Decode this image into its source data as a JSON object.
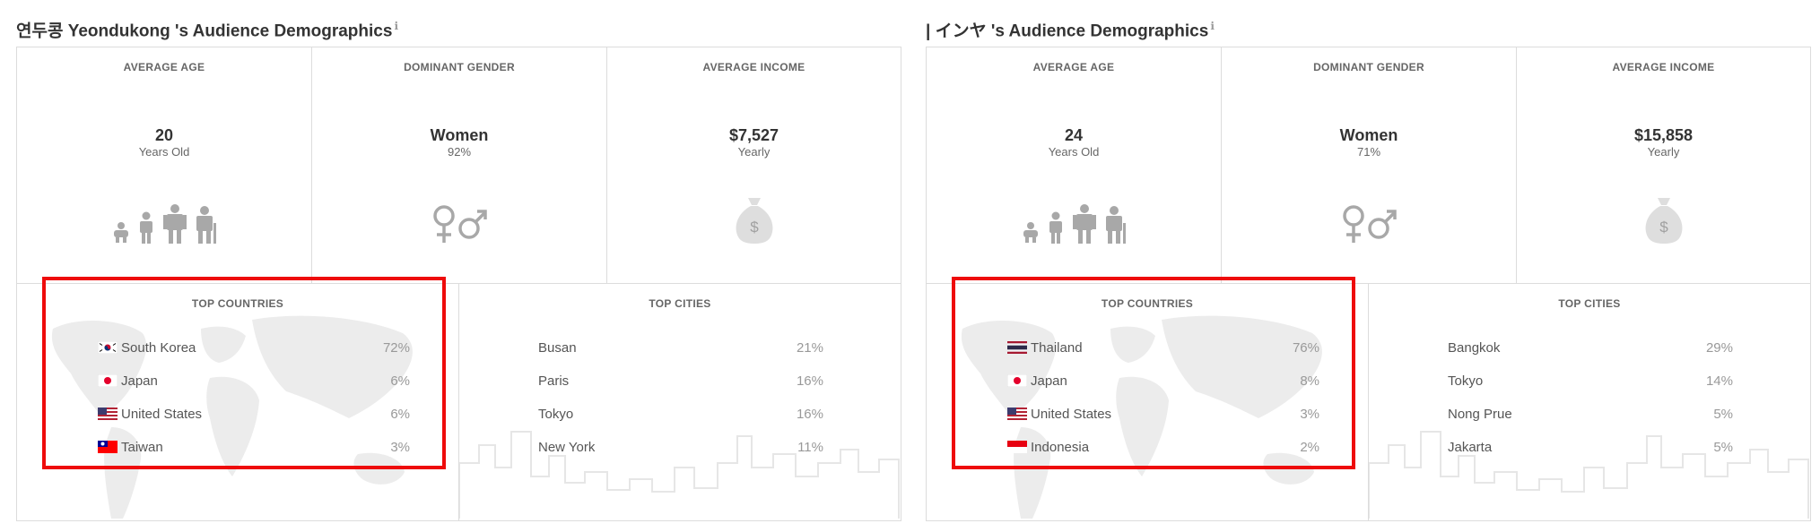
{
  "panels": [
    {
      "title": "연두콩 Yeondukong 's Audience Demographics",
      "info_icon": "ℹ",
      "age": {
        "heading": "AVERAGE AGE",
        "value": "20",
        "sub": "Years Old"
      },
      "gender": {
        "heading": "DOMINANT GENDER",
        "value": "Women",
        "sub": "92%"
      },
      "income": {
        "heading": "AVERAGE INCOME",
        "value": "$7,527",
        "sub": "Yearly"
      },
      "countries": {
        "heading": "TOP COUNTRIES",
        "items": [
          {
            "flag": "kr",
            "name": "South Korea",
            "pct": "72%"
          },
          {
            "flag": "jp",
            "name": "Japan",
            "pct": "6%"
          },
          {
            "flag": "us",
            "name": "United States",
            "pct": "6%"
          },
          {
            "flag": "tw",
            "name": "Taiwan",
            "pct": "3%"
          }
        ]
      },
      "cities": {
        "heading": "TOP CITIES",
        "items": [
          {
            "name": "Busan",
            "pct": "21%"
          },
          {
            "name": "Paris",
            "pct": "16%"
          },
          {
            "name": "Tokyo",
            "pct": "16%"
          },
          {
            "name": "New York",
            "pct": "11%"
          }
        ]
      }
    },
    {
      "title": "| インヤ 's Audience Demographics",
      "info_icon": "ℹ",
      "age": {
        "heading": "AVERAGE AGE",
        "value": "24",
        "sub": "Years Old"
      },
      "gender": {
        "heading": "DOMINANT GENDER",
        "value": "Women",
        "sub": "71%"
      },
      "income": {
        "heading": "AVERAGE INCOME",
        "value": "$15,858",
        "sub": "Yearly"
      },
      "countries": {
        "heading": "TOP COUNTRIES",
        "items": [
          {
            "flag": "th",
            "name": "Thailand",
            "pct": "76%"
          },
          {
            "flag": "jp",
            "name": "Japan",
            "pct": "8%"
          },
          {
            "flag": "us",
            "name": "United States",
            "pct": "3%"
          },
          {
            "flag": "id",
            "name": "Indonesia",
            "pct": "2%"
          }
        ]
      },
      "cities": {
        "heading": "TOP CITIES",
        "items": [
          {
            "name": "Bangkok",
            "pct": "29%"
          },
          {
            "name": "Tokyo",
            "pct": "14%"
          },
          {
            "name": "Nong Prue",
            "pct": "5%"
          },
          {
            "name": "Jakarta",
            "pct": "5%"
          }
        ]
      }
    }
  ],
  "highlight_color": "#ee0b0b",
  "icon_color": "#a8a8a8"
}
